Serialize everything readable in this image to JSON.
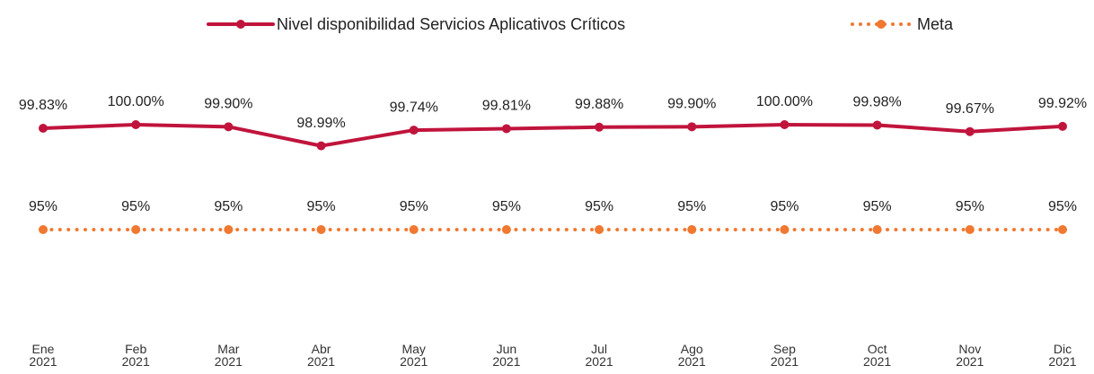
{
  "chart_data": {
    "type": "line",
    "categories": [
      "Ene 2021",
      "Feb 2021",
      "Mar 2021",
      "Abr 2021",
      "May 2021",
      "Jun 2021",
      "Jul 2021",
      "Ago 2021",
      "Sep 2021",
      "Oct 2021",
      "Nov 2021",
      "Dic 2021"
    ],
    "series": [
      {
        "name": "Nivel disponibilidad Servicios Aplicativos Críticos",
        "color": "#c0143c",
        "style": "solid",
        "values": [
          99.83,
          100.0,
          99.9,
          98.99,
          99.74,
          99.81,
          99.88,
          99.9,
          100.0,
          99.98,
          99.67,
          99.92
        ],
        "value_labels": [
          "99.83%",
          "100.00%",
          "99.90%",
          "98.99%",
          "99.74%",
          "99.81%",
          "99.88%",
          "99.90%",
          "100.00%",
          "99.98%",
          "99.67%",
          "99.92%"
        ]
      },
      {
        "name": "Meta",
        "color": "#f07830",
        "style": "dotted",
        "values": [
          95,
          95,
          95,
          95,
          95,
          95,
          95,
          95,
          95,
          95,
          95,
          95
        ],
        "value_labels": [
          "95%",
          "95%",
          "95%",
          "95%",
          "95%",
          "95%",
          "95%",
          "95%",
          "95%",
          "95%",
          "95%",
          "95%"
        ]
      }
    ],
    "ylim": [
      90,
      101
    ],
    "legend": "top"
  }
}
